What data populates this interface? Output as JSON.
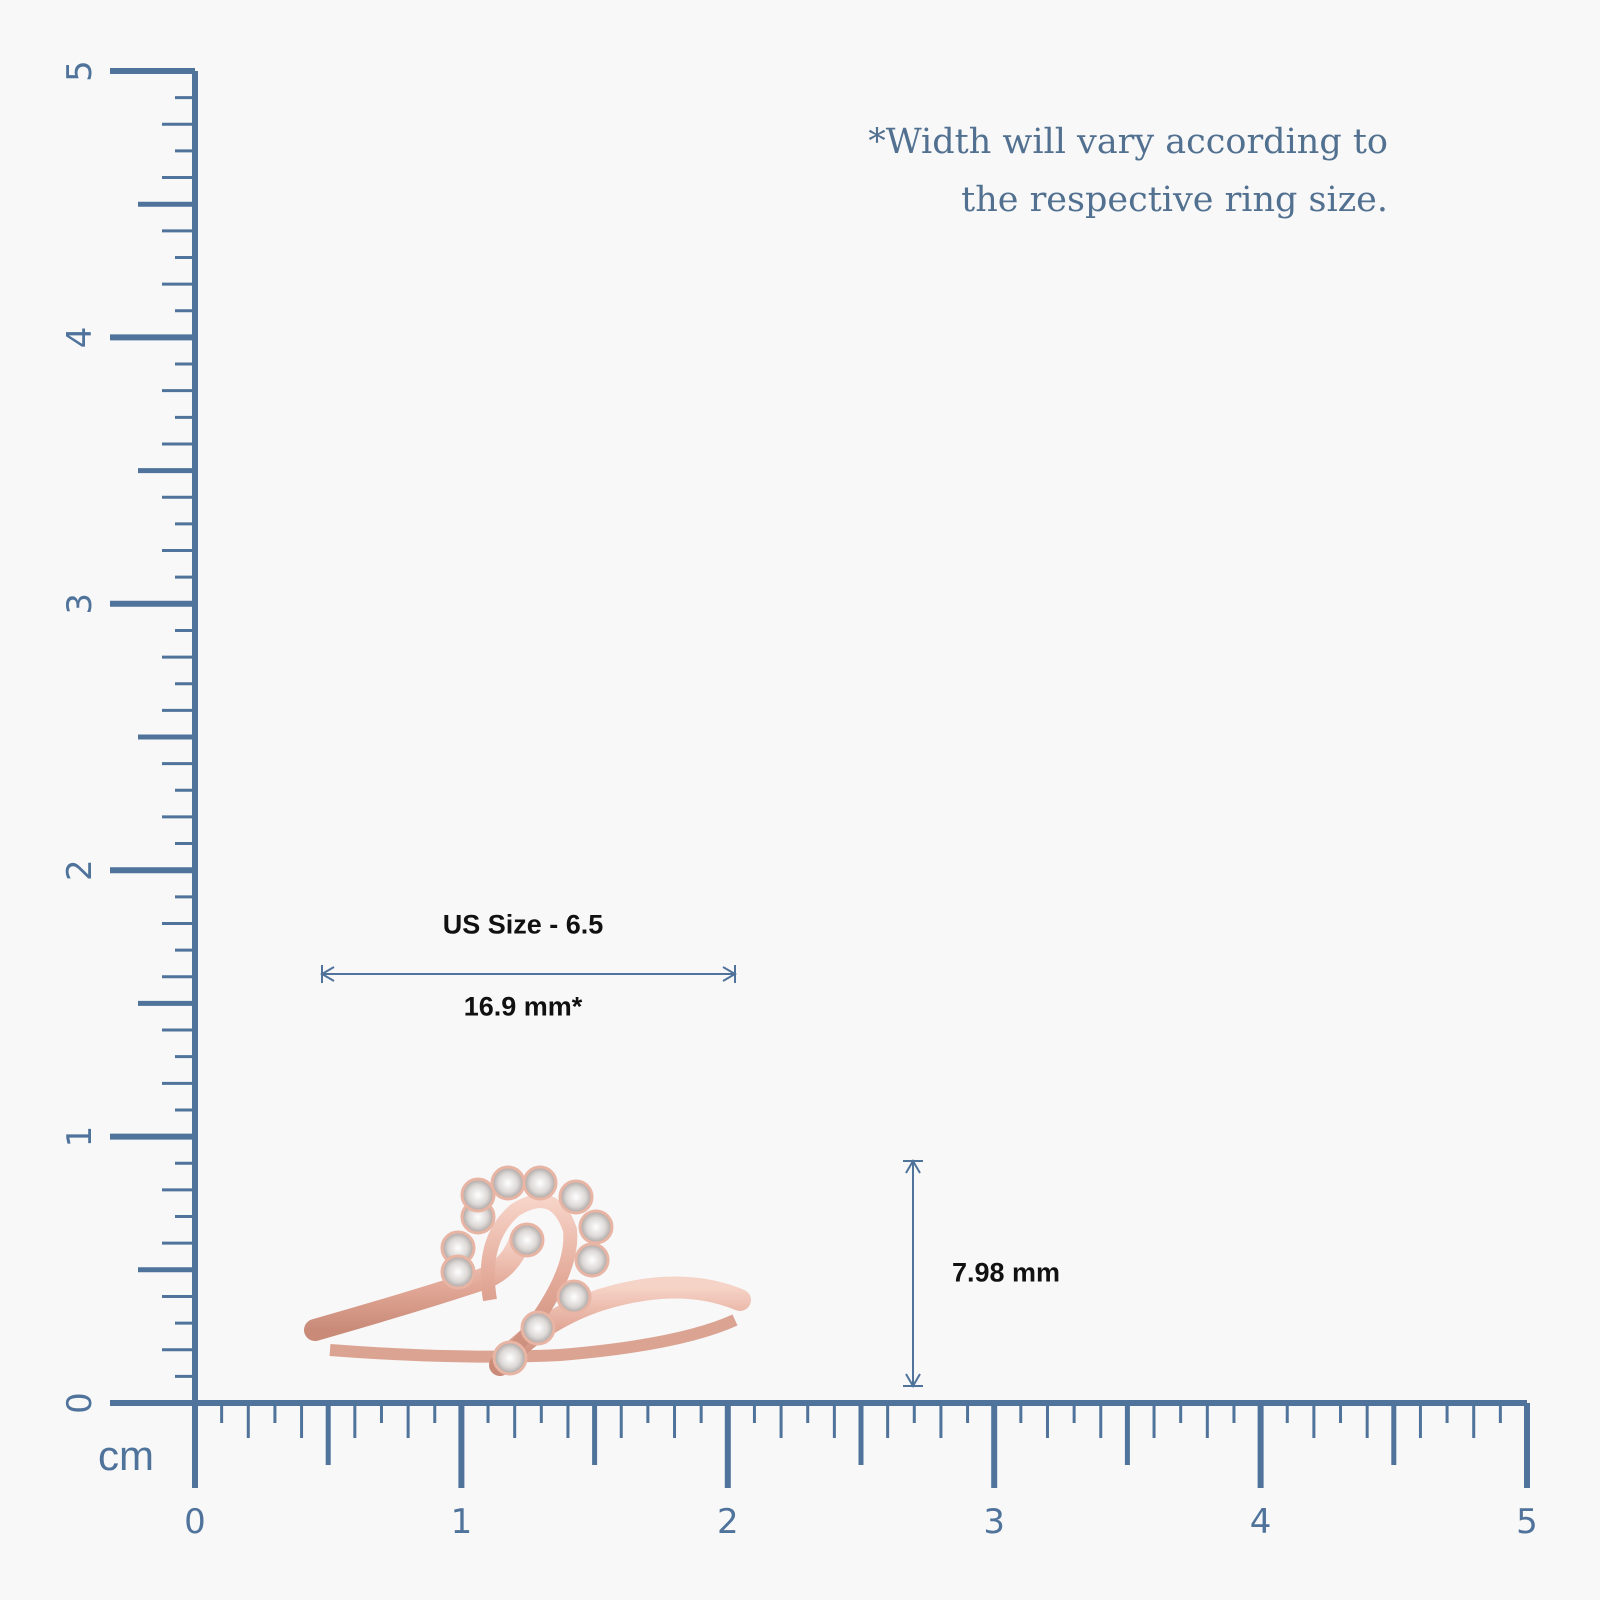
{
  "note": {
    "line1": "*Width will vary according to",
    "line2": "the respective ring size."
  },
  "ring_size_label": "US Size - 6.5",
  "width_label": "16.9 mm*",
  "height_label": "7.98 mm",
  "ruler": {
    "unit": "cm",
    "x_ticks": [
      "0",
      "1",
      "2",
      "3",
      "4",
      "5"
    ],
    "y_ticks": [
      "0",
      "1",
      "2",
      "3",
      "4",
      "5"
    ],
    "color": "#4f739a"
  },
  "ring_color": "#e8b4a4"
}
